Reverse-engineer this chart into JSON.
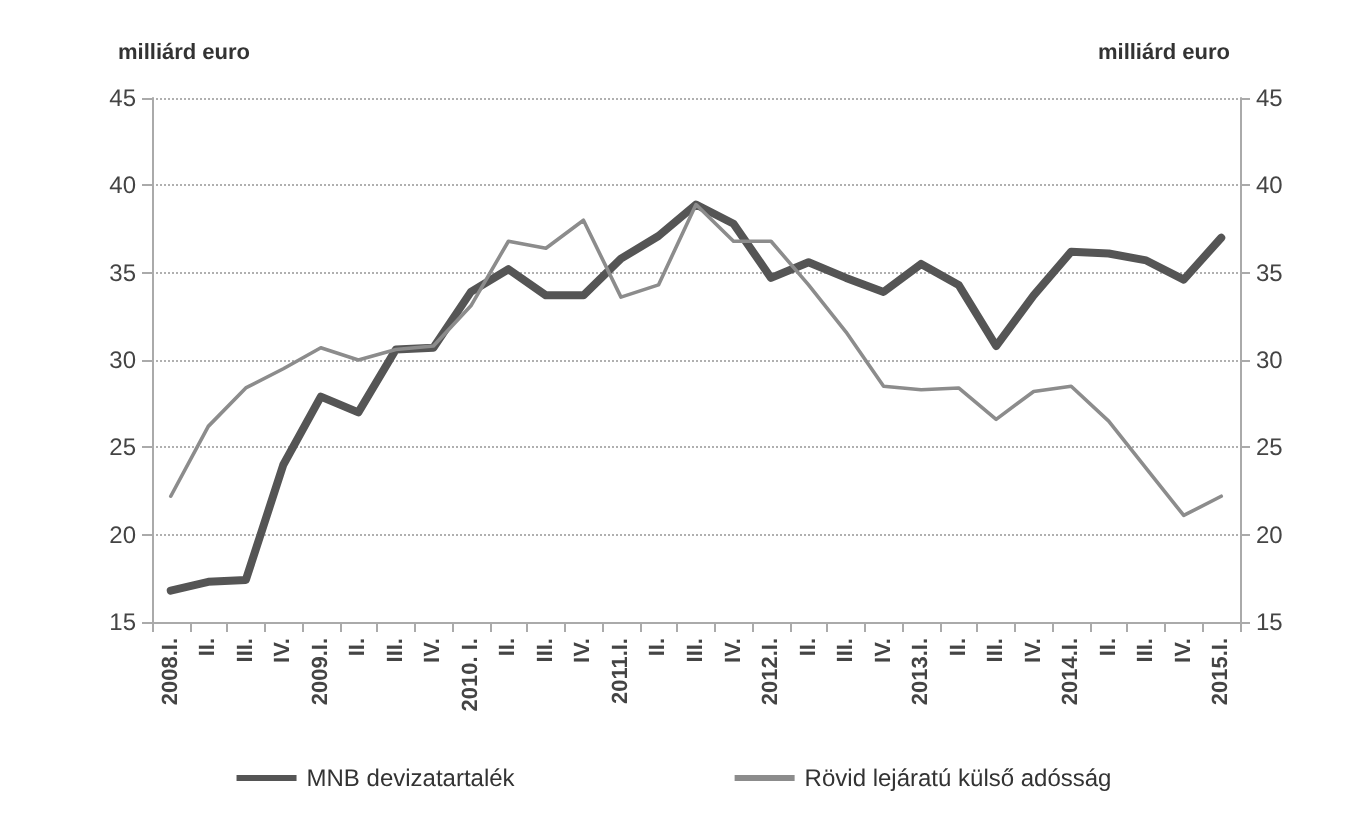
{
  "chart_data": {
    "type": "line",
    "ylabel": "milliárd euro",
    "y2label": "milliárd euro",
    "categories": [
      "2008.I.",
      "II.",
      "III.",
      "IV.",
      "2009.I.",
      "II.",
      "III.",
      "IV.",
      "2010. I.",
      "II.",
      "III.",
      "IV.",
      "2011.I.",
      "II.",
      "III.",
      "IV.",
      "2012.I.",
      "II.",
      "III.",
      "IV.",
      "2013.I.",
      "II.",
      "III.",
      "IV.",
      "2014.I.",
      "II.",
      "III.",
      "IV.",
      "2015.I."
    ],
    "series": [
      {
        "name": "MNB devizatartalék",
        "color": "#555555",
        "values": [
          16.8,
          17.3,
          17.4,
          24,
          27.9,
          27,
          30.6,
          30.7,
          33.9,
          35.2,
          33.7,
          33.7,
          35.8,
          37.1,
          38.9,
          37.8,
          34.7,
          35.6,
          34.7,
          33.9,
          35.5,
          34.3,
          30.8,
          33.7,
          36.2,
          36.1,
          35.7,
          34.6,
          37
        ]
      },
      {
        "name": "Rövid lejáratú külső adósság",
        "color": "#8c8c8c",
        "values": [
          22.2,
          26.2,
          28.4,
          29.5,
          30.7,
          30,
          30.6,
          30.8,
          33.1,
          36.8,
          36.4,
          38,
          33.6,
          34.3,
          38.9,
          36.8,
          36.8,
          34.3,
          31.6,
          28.5,
          28.3,
          28.4,
          26.6,
          28.2,
          28.5,
          26.5,
          23.8,
          21.1,
          22.2
        ]
      }
    ],
    "ylim": [
      15,
      45
    ],
    "yticks": [
      15,
      20,
      25,
      30,
      35,
      40,
      45
    ],
    "y2lim": [
      15,
      45
    ],
    "y2ticks": [
      15,
      20,
      25,
      30,
      35,
      40,
      45
    ],
    "grid": "y",
    "legend": "bottom",
    "marker": "none",
    "line_style": "solid"
  }
}
